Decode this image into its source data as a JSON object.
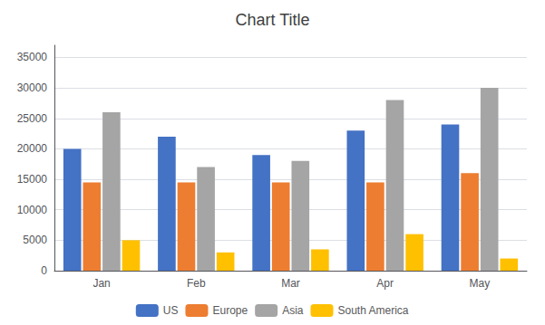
{
  "chart_data": {
    "type": "bar",
    "title": "Chart Title",
    "categories": [
      "Jan",
      "Feb",
      "Mar",
      "Apr",
      "May"
    ],
    "series": [
      {
        "name": "US",
        "color": "#4472C4",
        "values": [
          20000,
          22000,
          19000,
          23000,
          24000
        ]
      },
      {
        "name": "Europe",
        "color": "#ED7D31",
        "values": [
          14500,
          14500,
          14500,
          14500,
          16000
        ]
      },
      {
        "name": "Asia",
        "color": "#A5A5A5",
        "values": [
          26000,
          17000,
          18000,
          28000,
          30000
        ]
      },
      {
        "name": "South America",
        "color": "#FFC000",
        "values": [
          5000,
          3000,
          3500,
          6000,
          2000
        ]
      }
    ],
    "ylim": [
      0,
      37000
    ],
    "yticks": [
      0,
      5000,
      10000,
      15000,
      20000,
      25000,
      30000,
      35000
    ],
    "grid": true,
    "legend": "bottom"
  }
}
